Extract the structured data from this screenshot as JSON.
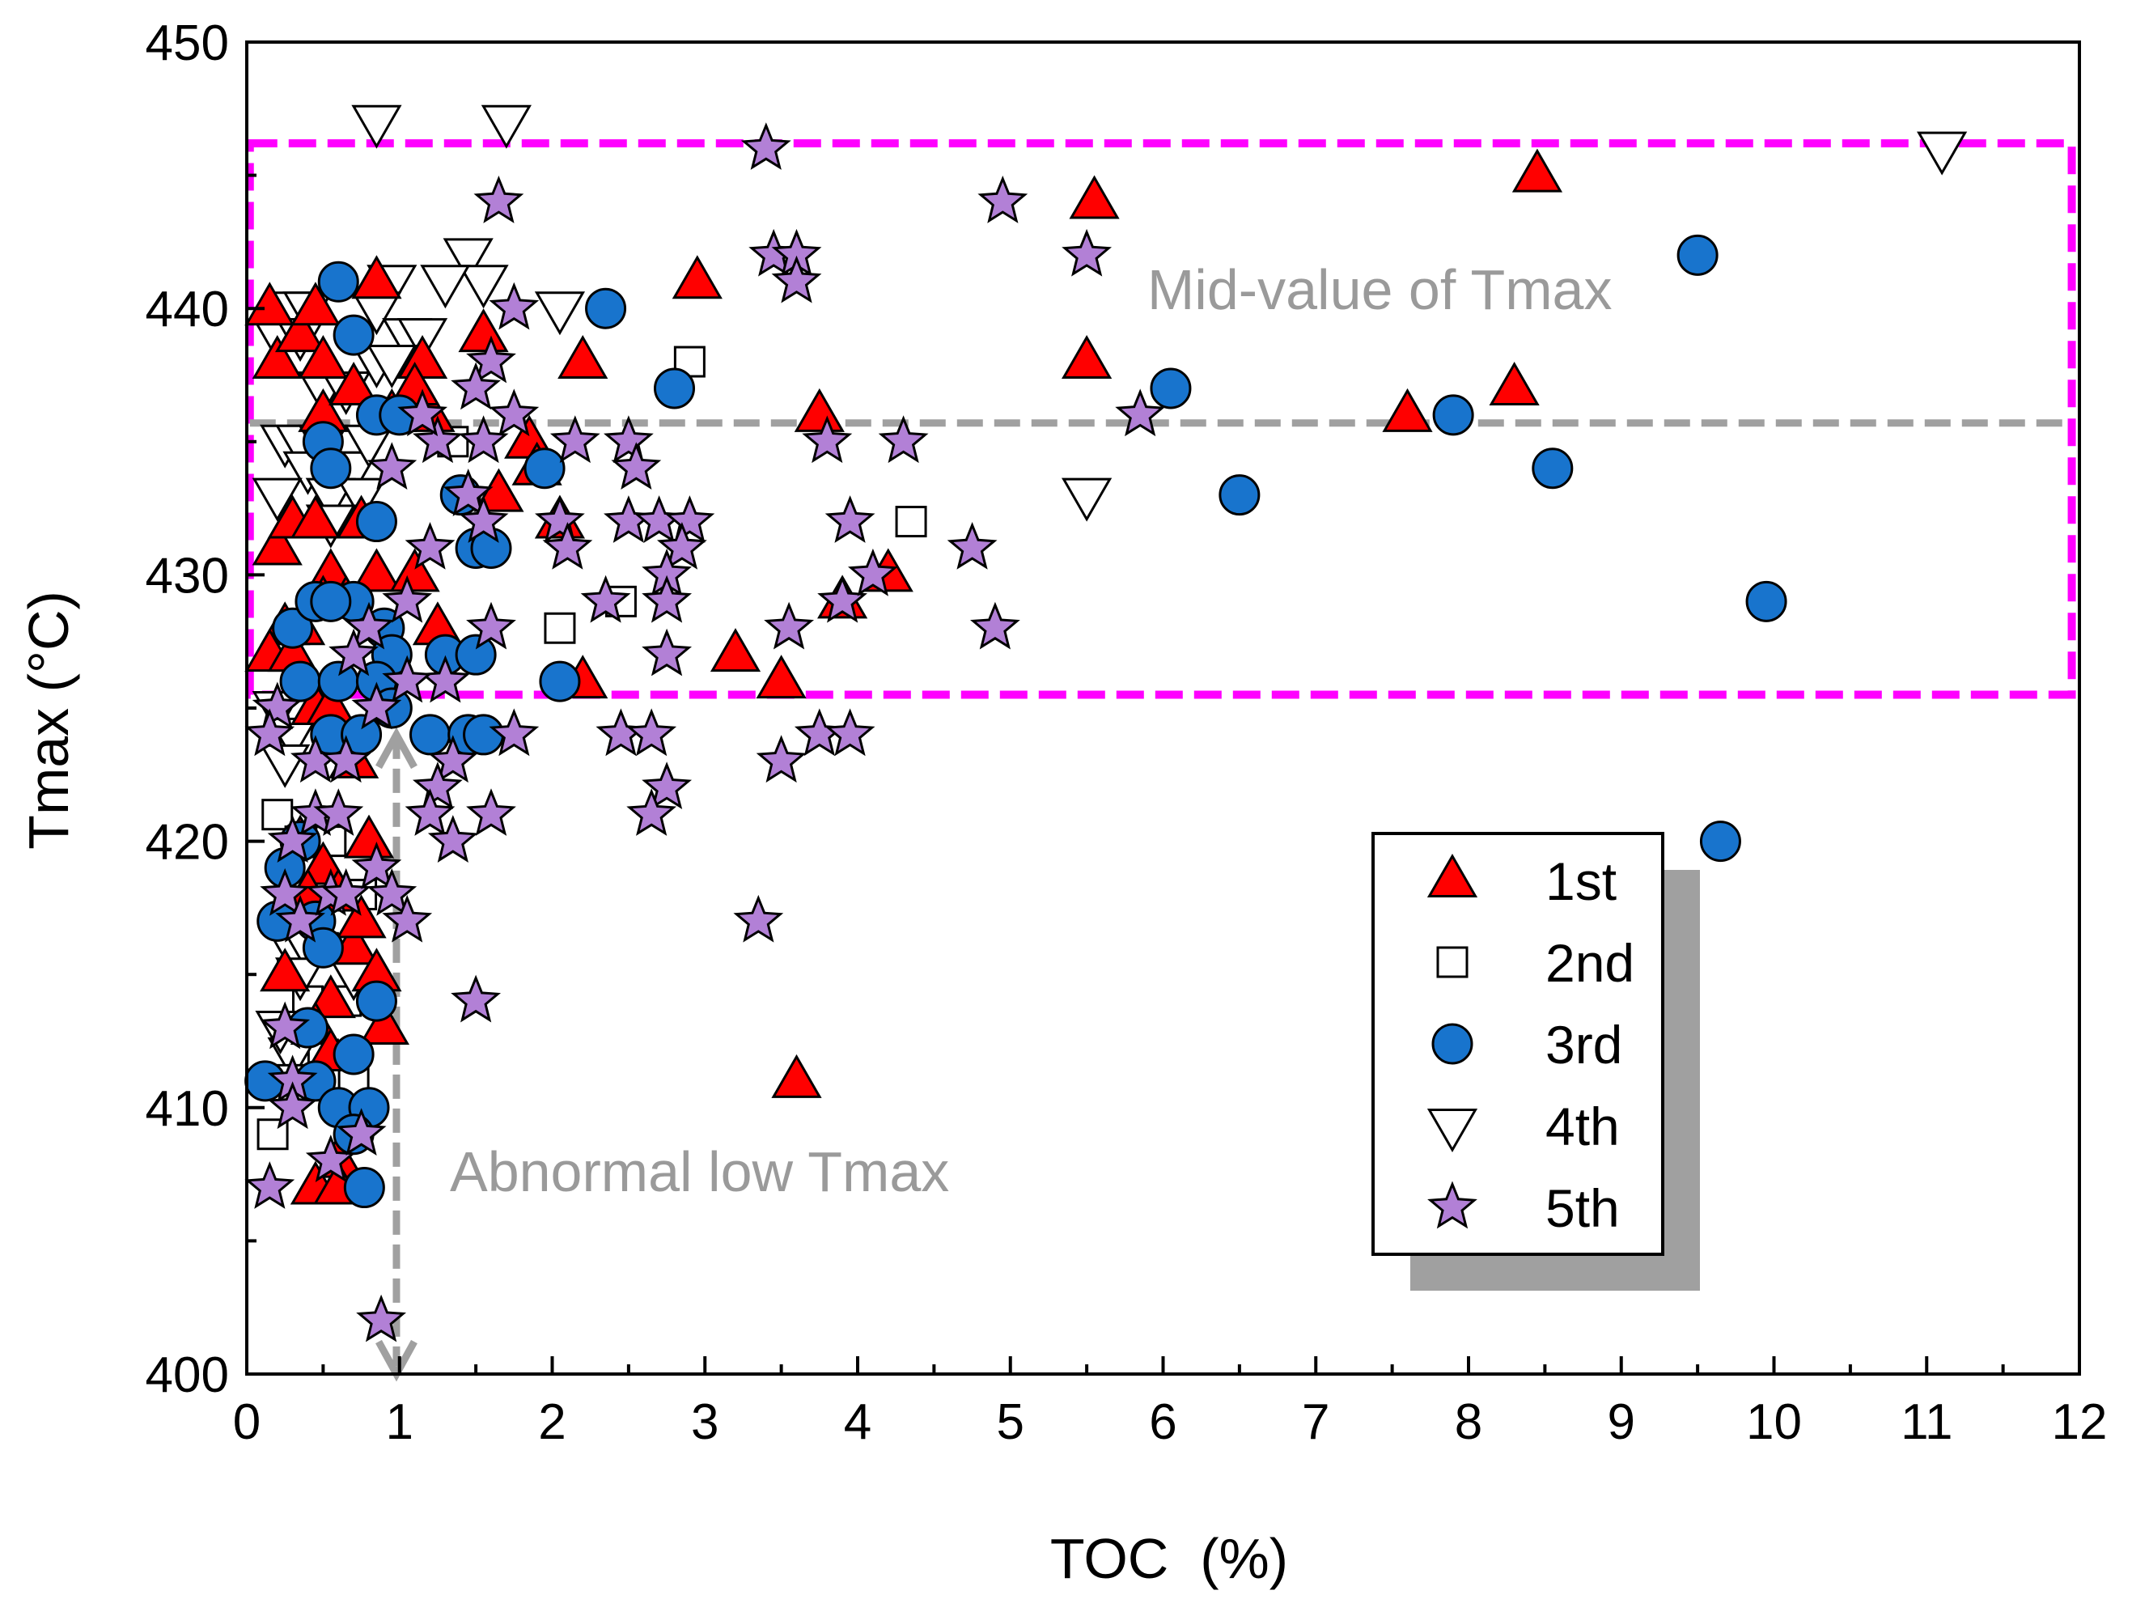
{
  "chart_data": {
    "type": "scatter",
    "title": "",
    "xlabel": "TOC  (%)",
    "ylabel": "Tmax (°C)",
    "xlim": [
      0,
      12
    ],
    "ylim": [
      400,
      450
    ],
    "xticks": [
      "0",
      "1",
      "2",
      "3",
      "4",
      "5",
      "6",
      "7",
      "8",
      "9",
      "10",
      "11",
      "12"
    ],
    "yticks": [
      "400",
      "410",
      "420",
      "430",
      "440",
      "450"
    ],
    "grid": false,
    "legend_position": "bottom-right",
    "colors": {
      "first": "#ff0000",
      "second": "#ffffff",
      "third": "#1874cd",
      "fourth": "#ffffff",
      "fifth": "#b280d6",
      "box": "#ff00ff",
      "guide": "#a0a0a0"
    },
    "annotations": {
      "mid_value_label": "Mid-value of Tmax",
      "abnormal_label": "Abnormal low Tmax",
      "mid_value_line_y": 435.7,
      "box_range": {
        "x": [
          0.02,
          11.95
        ],
        "y": [
          425.5,
          446.2
        ]
      },
      "abnormal_arrow": {
        "x": 0.98,
        "y_from": 424,
        "y_to": 400
      }
    },
    "series": [
      {
        "name": "1st",
        "marker": "triangle-up",
        "points": [
          [
            0.15,
            440
          ],
          [
            0.2,
            438
          ],
          [
            0.35,
            439
          ],
          [
            0.45,
            440
          ],
          [
            0.5,
            438
          ],
          [
            0.85,
            441
          ],
          [
            1.15,
            438
          ],
          [
            1.55,
            439
          ],
          [
            2.2,
            438
          ],
          [
            2.95,
            441
          ],
          [
            5.5,
            438
          ],
          [
            5.55,
            444
          ],
          [
            8.45,
            445
          ],
          [
            8.3,
            437
          ],
          [
            7.6,
            436
          ],
          [
            3.75,
            436
          ],
          [
            1.2,
            436
          ],
          [
            0.5,
            436
          ],
          [
            0.7,
            437
          ],
          [
            0.95,
            436
          ],
          [
            1.1,
            437
          ],
          [
            1.85,
            435
          ],
          [
            1.9,
            434
          ],
          [
            1.65,
            433
          ],
          [
            0.2,
            431
          ],
          [
            0.3,
            432
          ],
          [
            0.45,
            432
          ],
          [
            0.55,
            430
          ],
          [
            0.75,
            432
          ],
          [
            0.85,
            430
          ],
          [
            1.1,
            430
          ],
          [
            2.05,
            432
          ],
          [
            4.2,
            430
          ],
          [
            3.9,
            429
          ],
          [
            0.25,
            428
          ],
          [
            0.35,
            428
          ],
          [
            0.5,
            429
          ],
          [
            0.65,
            429
          ],
          [
            1.25,
            428
          ],
          [
            3.2,
            427
          ],
          [
            3.5,
            426
          ],
          [
            2.2,
            426
          ],
          [
            0.15,
            427
          ],
          [
            0.3,
            427
          ],
          [
            0.45,
            425
          ],
          [
            0.55,
            425
          ],
          [
            0.7,
            423
          ],
          [
            0.35,
            420
          ],
          [
            0.5,
            419
          ],
          [
            0.6,
            418
          ],
          [
            0.8,
            420
          ],
          [
            0.4,
            418
          ],
          [
            0.25,
            415
          ],
          [
            0.55,
            414
          ],
          [
            0.7,
            416
          ],
          [
            0.85,
            415
          ],
          [
            0.75,
            417
          ],
          [
            0.9,
            413
          ],
          [
            0.45,
            413
          ],
          [
            0.55,
            412
          ],
          [
            0.6,
            408
          ],
          [
            0.45,
            407
          ],
          [
            0.6,
            407
          ],
          [
            3.6,
            411
          ]
        ]
      },
      {
        "name": "2nd",
        "marker": "square",
        "points": [
          [
            2.9,
            438
          ],
          [
            4.35,
            432
          ],
          [
            2.05,
            428
          ],
          [
            2.45,
            429
          ],
          [
            1.35,
            435
          ],
          [
            0.4,
            435
          ],
          [
            0.7,
            435
          ],
          [
            0.2,
            421
          ],
          [
            0.35,
            420
          ],
          [
            0.55,
            420
          ],
          [
            0.3,
            417
          ],
          [
            0.5,
            416
          ],
          [
            0.75,
            418
          ],
          [
            0.4,
            414
          ],
          [
            0.5,
            412
          ],
          [
            0.7,
            411
          ],
          [
            0.17,
            409
          ],
          [
            0.3,
            415
          ],
          [
            0.65,
            414
          ]
        ]
      },
      {
        "name": "3rd",
        "marker": "circle",
        "points": [
          [
            0.6,
            441
          ],
          [
            0.7,
            439
          ],
          [
            2.35,
            440
          ],
          [
            2.8,
            437
          ],
          [
            6.05,
            437
          ],
          [
            7.9,
            436
          ],
          [
            8.55,
            434
          ],
          [
            9.5,
            442
          ],
          [
            6.5,
            433
          ],
          [
            9.95,
            429
          ],
          [
            9.65,
            420
          ],
          [
            0.85,
            436
          ],
          [
            1.0,
            436
          ],
          [
            0.5,
            435
          ],
          [
            0.55,
            434
          ],
          [
            1.4,
            433
          ],
          [
            1.5,
            431
          ],
          [
            1.6,
            431
          ],
          [
            1.95,
            434
          ],
          [
            0.85,
            432
          ],
          [
            0.7,
            429
          ],
          [
            0.9,
            428
          ],
          [
            0.95,
            427
          ],
          [
            1.3,
            427
          ],
          [
            1.5,
            427
          ],
          [
            2.05,
            426
          ],
          [
            0.3,
            428
          ],
          [
            0.45,
            429
          ],
          [
            0.55,
            429
          ],
          [
            0.35,
            426
          ],
          [
            0.6,
            426
          ],
          [
            0.85,
            426
          ],
          [
            0.95,
            425
          ],
          [
            0.55,
            424
          ],
          [
            0.75,
            424
          ],
          [
            1.2,
            424
          ],
          [
            1.45,
            424
          ],
          [
            1.55,
            424
          ],
          [
            0.35,
            420
          ],
          [
            0.25,
            419
          ],
          [
            0.45,
            417
          ],
          [
            0.2,
            417
          ],
          [
            0.5,
            416
          ],
          [
            0.4,
            413
          ],
          [
            0.7,
            412
          ],
          [
            0.85,
            414
          ],
          [
            0.12,
            411
          ],
          [
            0.45,
            411
          ],
          [
            0.6,
            410
          ],
          [
            0.8,
            410
          ],
          [
            0.7,
            409
          ],
          [
            0.77,
            407
          ]
        ]
      },
      {
        "name": "4th",
        "marker": "triangle-down",
        "points": [
          [
            0.85,
            447
          ],
          [
            1.7,
            447
          ],
          [
            11.1,
            446
          ],
          [
            1.45,
            442
          ],
          [
            1.55,
            441
          ],
          [
            1.3,
            441
          ],
          [
            0.95,
            441
          ],
          [
            2.05,
            440
          ],
          [
            0.3,
            440
          ],
          [
            0.4,
            440
          ],
          [
            0.2,
            439
          ],
          [
            0.35,
            439
          ],
          [
            0.85,
            440
          ],
          [
            1.05,
            439
          ],
          [
            1.15,
            439
          ],
          [
            0.5,
            437
          ],
          [
            0.65,
            437
          ],
          [
            0.85,
            438
          ],
          [
            0.95,
            438
          ],
          [
            0.25,
            435
          ],
          [
            0.35,
            435
          ],
          [
            0.5,
            435
          ],
          [
            0.6,
            434
          ],
          [
            0.7,
            434
          ],
          [
            0.8,
            435
          ],
          [
            0.4,
            434
          ],
          [
            0.2,
            433
          ],
          [
            0.55,
            433
          ],
          [
            0.75,
            433
          ],
          [
            0.55,
            432
          ],
          [
            5.5,
            433
          ],
          [
            0.2,
            425
          ],
          [
            0.3,
            424
          ],
          [
            0.25,
            423
          ],
          [
            0.3,
            416
          ],
          [
            0.4,
            416
          ],
          [
            0.35,
            415
          ],
          [
            0.7,
            415
          ],
          [
            0.3,
            412
          ],
          [
            0.22,
            413
          ],
          [
            0.25,
            411
          ]
        ]
      },
      {
        "name": "5th",
        "marker": "star",
        "points": [
          [
            3.4,
            446
          ],
          [
            1.65,
            444
          ],
          [
            4.95,
            444
          ],
          [
            5.5,
            442
          ],
          [
            3.45,
            442
          ],
          [
            3.6,
            442
          ],
          [
            3.6,
            441
          ],
          [
            1.75,
            440
          ],
          [
            1.6,
            438
          ],
          [
            5.85,
            436
          ],
          [
            1.75,
            436
          ],
          [
            1.5,
            437
          ],
          [
            1.55,
            435
          ],
          [
            1.25,
            435
          ],
          [
            1.15,
            436
          ],
          [
            0.95,
            434
          ],
          [
            2.15,
            435
          ],
          [
            2.5,
            435
          ],
          [
            2.55,
            434
          ],
          [
            3.8,
            435
          ],
          [
            4.3,
            435
          ],
          [
            1.45,
            433
          ],
          [
            1.55,
            432
          ],
          [
            1.2,
            431
          ],
          [
            2.05,
            432
          ],
          [
            2.1,
            431
          ],
          [
            2.5,
            432
          ],
          [
            2.7,
            432
          ],
          [
            2.9,
            432
          ],
          [
            2.85,
            431
          ],
          [
            2.75,
            430
          ],
          [
            2.75,
            429
          ],
          [
            2.35,
            429
          ],
          [
            3.95,
            432
          ],
          [
            3.9,
            429
          ],
          [
            4.1,
            430
          ],
          [
            4.75,
            431
          ],
          [
            4.9,
            428
          ],
          [
            3.55,
            428
          ],
          [
            1.6,
            428
          ],
          [
            1.05,
            429
          ],
          [
            0.8,
            428
          ],
          [
            0.7,
            427
          ],
          [
            2.75,
            427
          ],
          [
            1.3,
            426
          ],
          [
            1.05,
            426
          ],
          [
            0.85,
            425
          ],
          [
            0.2,
            425
          ],
          [
            0.15,
            424
          ],
          [
            0.45,
            423
          ],
          [
            0.65,
            423
          ],
          [
            1.75,
            424
          ],
          [
            2.45,
            424
          ],
          [
            2.65,
            424
          ],
          [
            3.5,
            423
          ],
          [
            3.75,
            424
          ],
          [
            3.95,
            424
          ],
          [
            2.75,
            422
          ],
          [
            2.65,
            421
          ],
          [
            1.6,
            421
          ],
          [
            1.35,
            423
          ],
          [
            1.25,
            422
          ],
          [
            1.2,
            421
          ],
          [
            0.45,
            421
          ],
          [
            0.6,
            421
          ],
          [
            1.35,
            420
          ],
          [
            0.3,
            420
          ],
          [
            0.25,
            418
          ],
          [
            0.35,
            417
          ],
          [
            0.55,
            418
          ],
          [
            0.65,
            418
          ],
          [
            0.85,
            419
          ],
          [
            0.95,
            418
          ],
          [
            1.05,
            417
          ],
          [
            3.35,
            417
          ],
          [
            0.25,
            413
          ],
          [
            0.3,
            411
          ],
          [
            0.3,
            410
          ],
          [
            1.5,
            414
          ],
          [
            0.55,
            408
          ],
          [
            0.75,
            409
          ],
          [
            0.15,
            407
          ],
          [
            0.88,
            402
          ]
        ]
      }
    ]
  }
}
